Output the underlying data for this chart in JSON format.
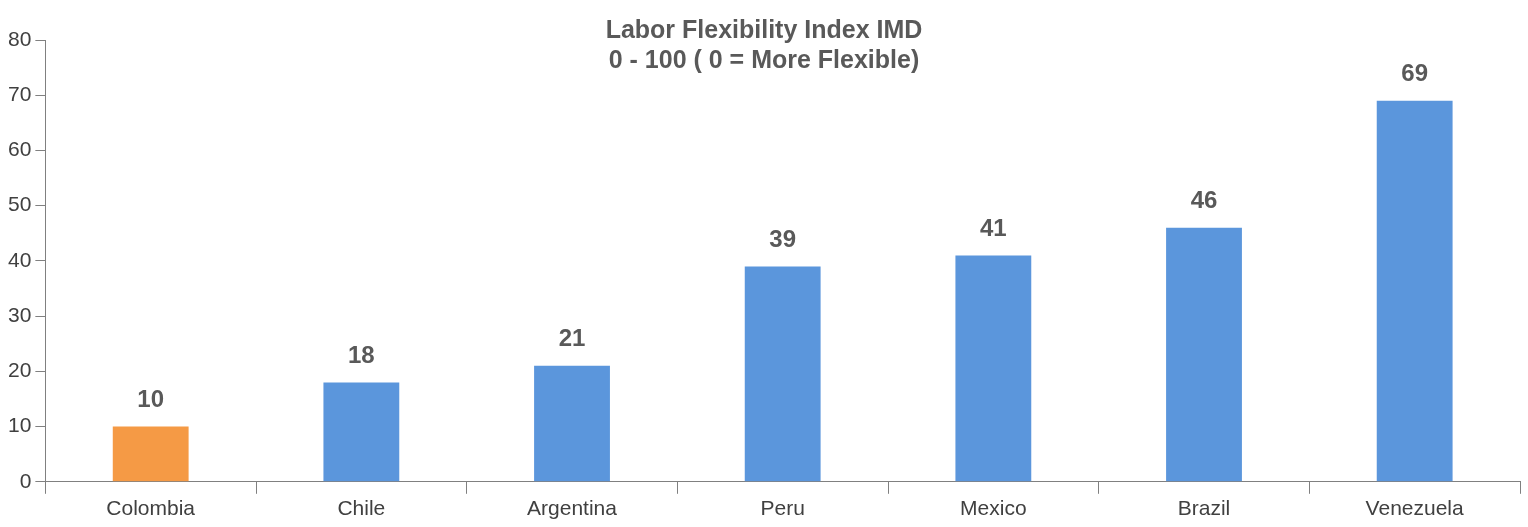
{
  "chart_data": {
    "type": "bar",
    "title": "Labor Flexibility Index IMD",
    "subtitle": "0 - 100 ( 0 = More Flexible)",
    "categories": [
      "Colombia",
      "Chile",
      "Argentina",
      "Peru",
      "Mexico",
      "Brazil",
      "Venezuela"
    ],
    "values": [
      10,
      18,
      21,
      39,
      41,
      46,
      69
    ],
    "colors": [
      "#f59a45",
      "#5b96dc",
      "#5b96dc",
      "#5b96dc",
      "#5b96dc",
      "#5b96dc",
      "#5b96dc"
    ],
    "ylim": [
      0,
      80
    ],
    "yticks": [
      0,
      10,
      20,
      30,
      40,
      50,
      60,
      70,
      80
    ],
    "grid": false,
    "legend": false,
    "data_labels": true
  }
}
